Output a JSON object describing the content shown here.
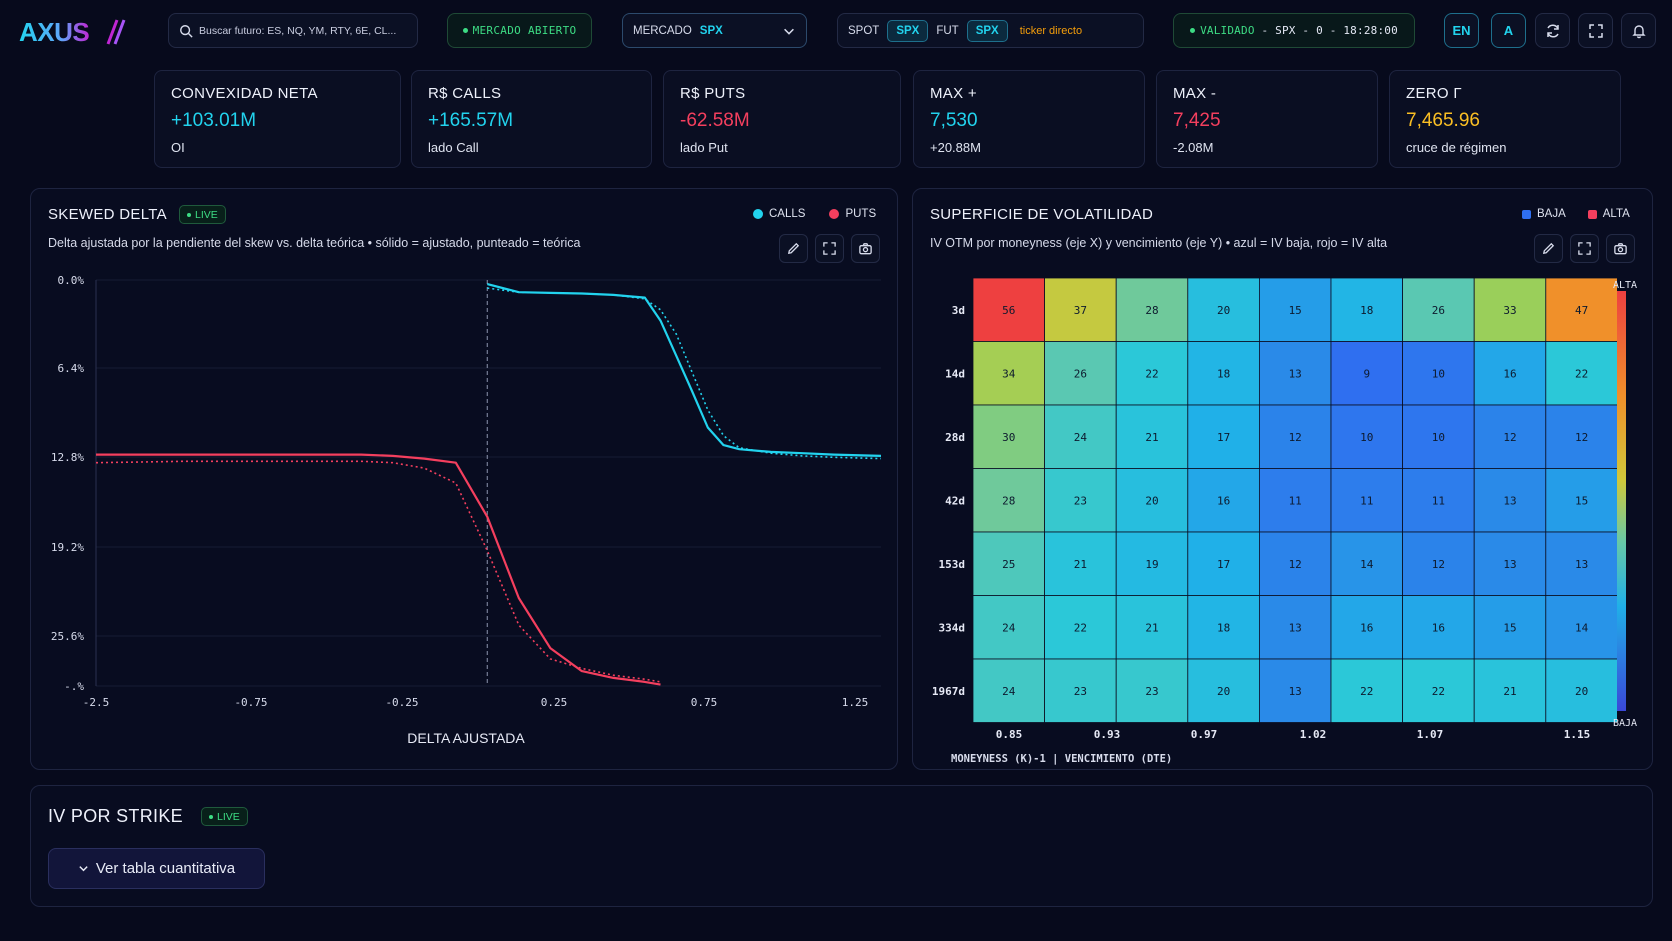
{
  "brand": "AXUS",
  "colors": {
    "accent": "#22d3ee",
    "calls": "#22d3ee",
    "puts": "#f43f5e",
    "live": "#3ddc84",
    "gold": "#fbbf24",
    "ticker": "#f59e0b"
  },
  "header": {
    "search_placeholder": "Buscar futuro: ES, NQ, YM, RTY, 6E, CL...",
    "market_status": "MERCADO ABIERTO",
    "market_label": "MERCADO",
    "market_value": "SPX",
    "spot_label": "SPOT",
    "spot_value": "SPX",
    "fut_label": "FUT",
    "fut_value": "SPX",
    "ticker_link": "ticker directo",
    "validated_label": "VALIDADO",
    "validated_rest": "- SPX - 0 - 18:28:00",
    "lang": "EN",
    "font_btn": "A",
    "icons": [
      "search-icon",
      "chevron-down-icon",
      "refresh-icon",
      "fullscreen-icon",
      "bell-icon"
    ]
  },
  "kpis": [
    {
      "label": "CONVEXIDAD NETA",
      "value": "+103.01M",
      "sub": "OI",
      "tone": "cyan"
    },
    {
      "label": "R$ CALLS",
      "value": "+165.57M",
      "sub": "lado Call",
      "tone": "cyan"
    },
    {
      "label": "R$ PUTS",
      "value": "-62.58M",
      "sub": "lado Put",
      "tone": "red"
    },
    {
      "label": "MAX +",
      "value": "7,530",
      "sub": "+20.88M",
      "tone": "cyan"
    },
    {
      "label": "MAX -",
      "value": "7,425",
      "sub": "-2.08M",
      "tone": "red"
    },
    {
      "label": "ZERO Γ",
      "value": "7,465.96",
      "sub": "cruce de régimen",
      "tone": "gold"
    }
  ],
  "skewed": {
    "title": "SKEWED DELTA",
    "live": "LIVE",
    "desc": "Delta ajustada por la pendiente del skew vs. delta teórica • sólido = ajustado, punteado = teórica",
    "legend_calls": "CALLS",
    "legend_puts": "PUTS",
    "tool_icons": [
      "pencil-icon",
      "expand-icon",
      "camera-icon"
    ]
  },
  "surface": {
    "title": "SUPERFICIE DE VOLATILIDAD",
    "desc": "IV OTM por moneyness (eje X) y vencimiento (eje Y) • azul = IV baja, rojo = IV alta",
    "legend_low": "BAJA",
    "legend_high": "ALTA",
    "scale_top": "ALTA",
    "scale_bottom": "BAJA",
    "footer": "MONEYNESS (K)-1  | VENCIMIENTO (DTE)",
    "tool_icons": [
      "pencil-icon",
      "expand-icon",
      "camera-icon"
    ]
  },
  "chart_data": [
    {
      "type": "line",
      "title": "SKEWED DELTA",
      "xlabel": "DELTA AJUSTADA",
      "ylabel": "",
      "x_ticks": [
        "-2.5",
        "-0.75",
        "-0.25",
        "0.25",
        "0.75",
        "1.25"
      ],
      "y_ticks": [
        "0.0%",
        "6.4%",
        "12.8%",
        "19.2%",
        "25.6%",
        "-.%"
      ],
      "grid": true,
      "legend": "top-right",
      "marker_x": 0,
      "series": [
        {
          "name": "CALLS",
          "style": "solid",
          "color": "#22d3ee",
          "x": [
            0.0,
            0.1,
            0.2,
            0.3,
            0.4,
            0.5,
            0.55,
            0.6,
            0.65,
            0.7,
            0.75,
            0.8,
            0.9,
            1.0,
            1.1,
            1.25
          ],
          "y": [
            0.3,
            0.9,
            0.95,
            1.0,
            1.1,
            1.3,
            3.0,
            5.6,
            8.2,
            10.9,
            12.2,
            12.5,
            12.7,
            12.8,
            12.9,
            13.0
          ]
        },
        {
          "name": "CALLS",
          "style": "dotted",
          "color": "#22d3ee",
          "x": [
            0.0,
            0.1,
            0.2,
            0.3,
            0.4,
            0.5,
            0.55,
            0.6,
            0.65,
            0.7,
            0.75,
            0.8,
            0.9,
            1.0,
            1.1,
            1.25
          ],
          "y": [
            0.6,
            0.9,
            0.95,
            1.0,
            1.1,
            1.4,
            2.2,
            4.0,
            6.8,
            9.6,
            11.5,
            12.4,
            12.8,
            13.0,
            13.1,
            13.2
          ]
        },
        {
          "name": "PUTS",
          "style": "solid",
          "color": "#f43f5e",
          "x": [
            -2.5,
            -1.5,
            -1.0,
            -0.75,
            -0.5,
            -0.4,
            -0.3,
            -0.2,
            -0.1,
            0.0,
            0.1,
            0.2,
            0.3,
            0.4,
            0.5,
            0.55
          ],
          "y": [
            12.9,
            12.9,
            12.9,
            12.9,
            12.9,
            12.9,
            13.0,
            13.2,
            13.5,
            17.5,
            23.5,
            27.2,
            28.9,
            29.4,
            29.7,
            29.9
          ]
        },
        {
          "name": "PUTS",
          "style": "dotted",
          "color": "#f43f5e",
          "x": [
            -2.5,
            -1.5,
            -1.0,
            -0.75,
            -0.5,
            -0.4,
            -0.3,
            -0.2,
            -0.1,
            0.0,
            0.1,
            0.2,
            0.3,
            0.4,
            0.5,
            0.55
          ],
          "y": [
            13.5,
            13.4,
            13.4,
            13.4,
            13.4,
            13.4,
            13.5,
            13.9,
            15.0,
            20.0,
            25.5,
            28.0,
            28.7,
            29.2,
            29.5,
            29.7
          ]
        }
      ]
    },
    {
      "type": "heatmap",
      "title": "SUPERFICIE DE VOLATILIDAD",
      "xlabel": "MONEYNESS (K)-1",
      "ylabel": "VENCIMIENTO (DTE)",
      "x_ticks": [
        "0.85",
        "0.93",
        "0.97",
        "1.02",
        "1.07",
        "1.15"
      ],
      "rows": [
        "3d",
        "14d",
        "28d",
        "42d",
        "153d",
        "334d",
        "1967d"
      ],
      "values": [
        [
          56,
          37,
          28,
          20,
          15,
          18,
          26,
          33,
          47
        ],
        [
          34,
          26,
          22,
          18,
          13,
          9,
          10,
          16,
          22
        ],
        [
          30,
          24,
          21,
          17,
          12,
          10,
          10,
          12,
          12
        ],
        [
          28,
          23,
          20,
          16,
          11,
          11,
          11,
          13,
          15
        ],
        [
          25,
          21,
          19,
          17,
          12,
          14,
          12,
          13,
          13
        ],
        [
          24,
          22,
          21,
          18,
          13,
          16,
          16,
          15,
          14
        ],
        [
          24,
          23,
          23,
          20,
          13,
          22,
          22,
          21,
          20
        ]
      ],
      "color_low": "blue",
      "color_high": "red"
    }
  ],
  "strike": {
    "title": "IV POR STRIKE",
    "live": "LIVE",
    "button": "Ver tabla cuantitativa"
  }
}
